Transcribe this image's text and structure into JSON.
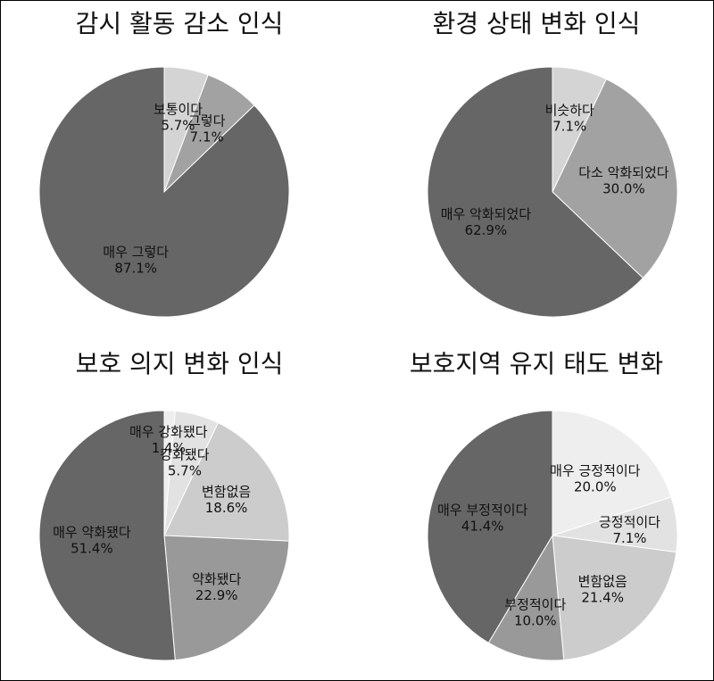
{
  "chart_data": [
    {
      "type": "pie",
      "title": "감시 활동 감소 인식",
      "labels": [
        "보통이다",
        "그렇다",
        "매우 그렇다"
      ],
      "values": [
        5.7,
        7.1,
        87.1
      ],
      "value_labels": [
        "5.7%",
        "7.1%",
        "87.1%"
      ],
      "colors": [
        "#d4d4d4",
        "#a2a2a2",
        "#666666"
      ]
    },
    {
      "type": "pie",
      "title": "환경 상태 변화 인식",
      "labels": [
        "비슷하다",
        "다소 악화되었다",
        "매우 악화되었다"
      ],
      "values": [
        7.1,
        30.0,
        62.9
      ],
      "value_labels": [
        "7.1%",
        "30.0%",
        "62.9%"
      ],
      "colors": [
        "#d4d4d4",
        "#a2a2a2",
        "#666666"
      ]
    },
    {
      "type": "pie",
      "title": "보호 의지 변화 인식",
      "labels": [
        "매우 강화됐다",
        "강화됐다",
        "변함없음",
        "약화됐다",
        "매우 약화됐다"
      ],
      "values": [
        1.4,
        5.7,
        18.6,
        22.9,
        51.4
      ],
      "value_labels": [
        "1.4%",
        "5.7%",
        "18.6%",
        "22.9%",
        "51.4%"
      ],
      "colors": [
        "#eeeeee",
        "#e2e2e2",
        "#cccccc",
        "#999999",
        "#666666"
      ]
    },
    {
      "type": "pie",
      "title": "보호지역 유지 태도 변화",
      "labels": [
        "매우 긍정적이다",
        "긍정적이다",
        "변함없음",
        "부정적이다",
        "매우 부정적이다"
      ],
      "values": [
        20.0,
        7.1,
        21.4,
        10.0,
        41.4
      ],
      "value_labels": [
        "20.0%",
        "7.1%",
        "21.4%",
        "10.0%",
        "41.4%"
      ],
      "colors": [
        "#eeeeee",
        "#e2e2e2",
        "#cccccc",
        "#999999",
        "#666666"
      ]
    }
  ]
}
